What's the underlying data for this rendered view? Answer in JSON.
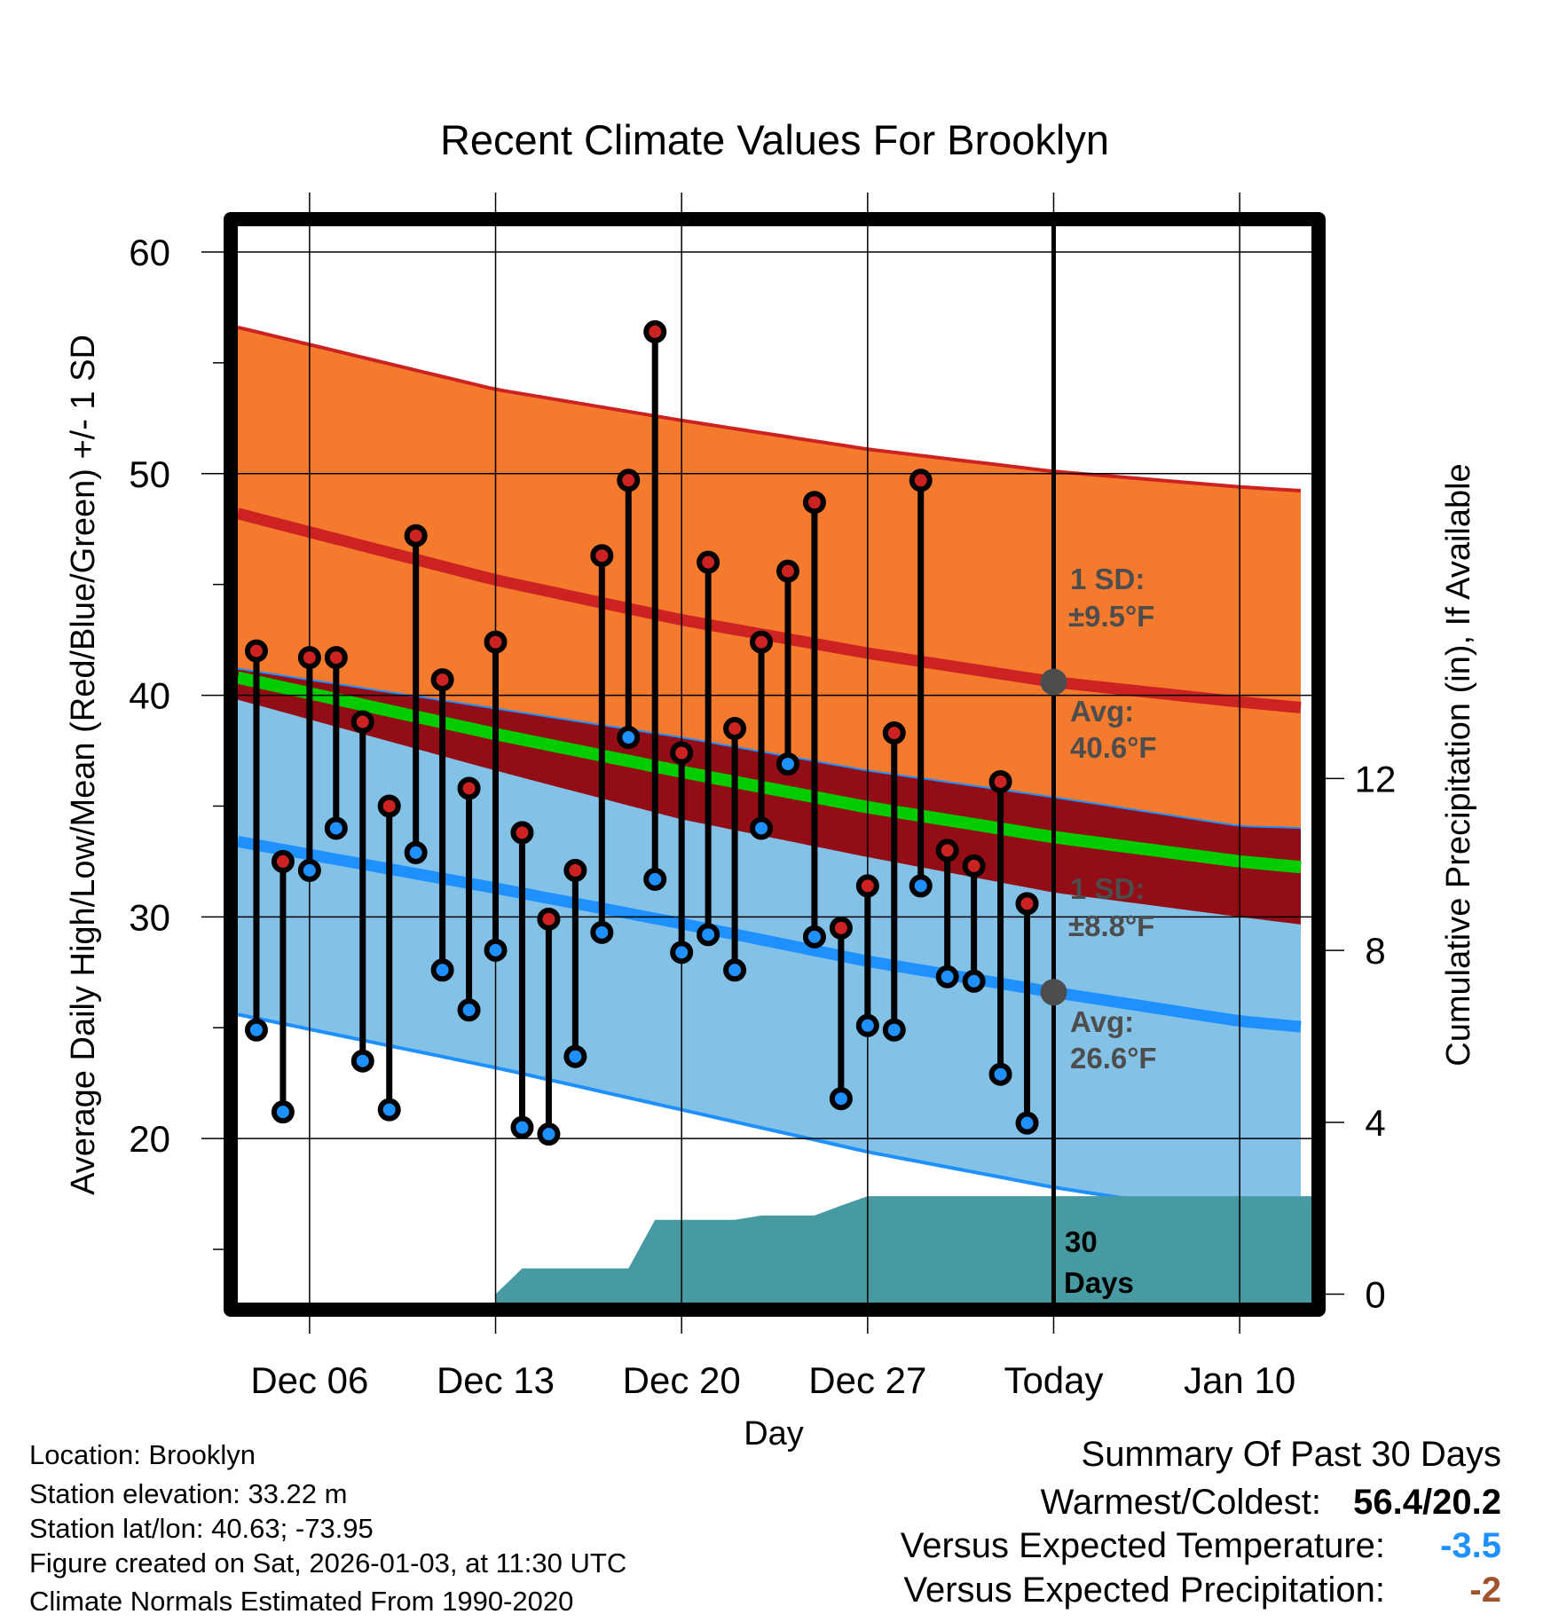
{
  "chart_data": {
    "type": "line",
    "title": "Recent Climate Values For Brooklyn",
    "xlabel": "Day",
    "ylabel": "Average Daily High/Low/Mean (Red/Blue/Green) +/- 1 SD",
    "y2label": "Cumulative Precipitation (in), If Available",
    "x_unit": "days since Dec 04",
    "xlim": [
      -0.7,
      39.7
    ],
    "ylim": [
      12.6,
      61.2
    ],
    "y2lim": [
      -0.195,
      24.87
    ],
    "x_ticks": [
      {
        "x": 2,
        "label": "Dec 06"
      },
      {
        "x": 9,
        "label": "Dec 13"
      },
      {
        "x": 16,
        "label": "Dec 20"
      },
      {
        "x": 23,
        "label": "Dec 27"
      },
      {
        "x": 30,
        "label": "Today"
      },
      {
        "x": 37,
        "label": "Jan 10"
      }
    ],
    "y_ticks": [
      20,
      30,
      40,
      50,
      60
    ],
    "y_minor_ticks": [
      15,
      25,
      35,
      45,
      55
    ],
    "y2_ticks": [
      0,
      4,
      8,
      12
    ],
    "grid": true,
    "today_x": 30,
    "dates": [
      "Dec 04",
      "Dec 05",
      "Dec 06",
      "Dec 07",
      "Dec 08",
      "Dec 09",
      "Dec 10",
      "Dec 11",
      "Dec 12",
      "Dec 13",
      "Dec 14",
      "Dec 15",
      "Dec 16",
      "Dec 17",
      "Dec 18",
      "Dec 19",
      "Dec 20",
      "Dec 21",
      "Dec 22",
      "Dec 23",
      "Dec 24",
      "Dec 25",
      "Dec 26",
      "Dec 27",
      "Dec 28",
      "Dec 29",
      "Dec 30",
      "Dec 31",
      "Jan 01",
      "Jan 02"
    ],
    "highs": [
      42.0,
      32.5,
      41.7,
      41.7,
      38.8,
      35.0,
      47.2,
      40.7,
      35.8,
      42.4,
      33.8,
      29.9,
      32.1,
      46.3,
      49.7,
      56.4,
      37.4,
      46.0,
      38.5,
      42.4,
      45.6,
      48.7,
      29.5,
      31.4,
      38.3,
      49.7,
      33.0,
      32.3,
      36.1,
      30.6
    ],
    "lows": [
      24.9,
      21.2,
      32.1,
      34.0,
      23.5,
      21.3,
      32.9,
      27.6,
      25.8,
      28.5,
      20.5,
      20.2,
      23.7,
      29.3,
      38.1,
      31.7,
      28.4,
      29.2,
      27.6,
      34.0,
      36.9,
      29.1,
      21.8,
      25.1,
      24.9,
      31.4,
      27.3,
      27.1,
      22.9,
      20.7
    ],
    "normals": {
      "x": [
        -0.7,
        9,
        16,
        23,
        30,
        37,
        39.7
      ],
      "high_mean": [
        48.2,
        45.2,
        43.4,
        41.9,
        40.6,
        39.7,
        39.4
      ],
      "high_sd": [
        8.4,
        8.6,
        9.0,
        9.2,
        9.5,
        9.7,
        9.8
      ],
      "low_mean": [
        33.4,
        31.3,
        29.7,
        28.0,
        26.6,
        25.3,
        25.0
      ],
      "low_sd": [
        7.8,
        8.1,
        8.4,
        8.6,
        8.8,
        8.8,
        9.0
      ]
    },
    "precip_cumulative": {
      "x": [
        9,
        10,
        14,
        15,
        18,
        19,
        21,
        22,
        23,
        39.7
      ],
      "values": [
        0,
        0.6,
        0.6,
        1.73,
        1.73,
        1.83,
        1.83,
        2.06,
        2.28,
        2.28
      ]
    },
    "annotations": {
      "high_sd_line1": "1 SD:",
      "high_sd_line2": "±9.5°F",
      "high_avg_line1": "Avg:",
      "high_avg_line2": "40.6°F",
      "low_sd_line1": "1 SD:",
      "low_sd_line2": "±8.8°F",
      "low_avg_line1": "Avg:",
      "low_avg_line2": "26.6°F",
      "precip_line1": "30",
      "precip_line2": "Days"
    },
    "colors": {
      "high_band": "#f47a2e",
      "overlap": "#920d15",
      "low_band": "#83c1e6",
      "mean": "#00cc00",
      "high_line": "#cc2222",
      "low_line": "#1e90ff",
      "precip": "#489aa2",
      "marker_gray": "#4d4d4d"
    }
  },
  "footer": {
    "location": "Location: Brooklyn",
    "elevation": "Station elevation: 33.22 m",
    "latlon": "Station lat/lon: 40.63; -73.95",
    "created": "Figure created on Sat, 2026-01-03, at 11:30 UTC",
    "normals": "Climate Normals Estimated From 1990-2020"
  },
  "summary": {
    "title": "Summary Of Past 30 Days",
    "warmest_label": "Warmest/Coldest:",
    "warmest_value": "56.4/20.2",
    "temp_label": "Versus Expected Temperature:",
    "temp_value": "-3.5",
    "temp_color": "#1e90ff",
    "precip_label": "Versus Expected Precipitation:",
    "precip_value": "-2",
    "precip_color": "#a0522d"
  }
}
